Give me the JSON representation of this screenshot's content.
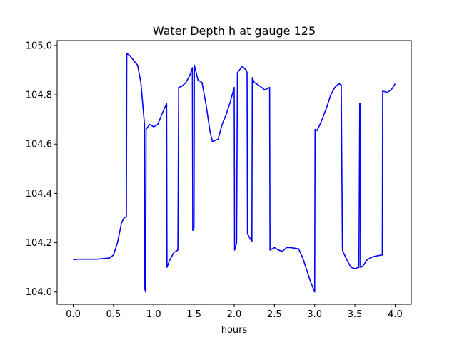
{
  "chart_data": {
    "type": "line",
    "title": "Water Depth h at gauge 125",
    "xlabel": "hours",
    "ylabel": "",
    "xlim": [
      -0.2,
      4.2
    ],
    "ylim": [
      103.95,
      105.02
    ],
    "xticks": [
      0.0,
      0.5,
      1.0,
      1.5,
      2.0,
      2.5,
      3.0,
      3.5,
      4.0
    ],
    "xtick_labels": [
      "0.0",
      "0.5",
      "1.0",
      "1.5",
      "2.0",
      "2.5",
      "3.0",
      "3.5",
      "4.0"
    ],
    "yticks": [
      104.0,
      104.2,
      104.4,
      104.6,
      104.8,
      105.0
    ],
    "ytick_labels": [
      "104.0",
      "104.2",
      "104.4",
      "104.6",
      "104.8",
      "105.0"
    ],
    "grid": false,
    "line_color": "#0000ff",
    "series": [
      {
        "x": [
          0.0,
          0.05,
          0.3,
          0.45,
          0.5,
          0.55,
          0.6,
          0.63,
          0.66,
          0.665,
          0.7,
          0.75,
          0.8,
          0.84,
          0.88,
          0.885,
          0.89,
          0.9,
          0.905,
          0.95,
          1.0,
          1.05,
          1.1,
          1.16,
          1.165,
          1.2,
          1.25,
          1.3,
          1.31,
          1.35,
          1.4,
          1.45,
          1.48,
          1.485,
          1.5,
          1.505,
          1.55,
          1.6,
          1.65,
          1.7,
          1.73,
          1.8,
          1.85,
          1.9,
          1.95,
          2.0,
          2.005,
          2.03,
          2.04,
          2.1,
          2.15,
          2.16,
          2.165,
          2.22,
          2.225,
          2.25,
          2.3,
          2.38,
          2.44,
          2.445,
          2.5,
          2.55,
          2.6,
          2.65,
          2.7,
          2.8,
          2.85,
          2.9,
          2.95,
          3.0,
          3.005,
          3.03,
          3.08,
          3.15,
          3.2,
          3.25,
          3.3,
          3.33,
          3.345,
          3.35,
          3.4,
          3.45,
          3.5,
          3.55,
          3.56,
          3.565,
          3.57,
          3.575,
          3.6,
          3.65,
          3.7,
          3.75,
          3.8,
          3.84,
          3.845,
          3.9,
          3.95,
          4.0
        ],
        "y": [
          104.13,
          104.133,
          104.133,
          104.138,
          104.15,
          104.2,
          104.28,
          104.3,
          104.305,
          104.968,
          104.96,
          104.94,
          104.92,
          104.85,
          104.7,
          104.68,
          104.01,
          104.0,
          104.66,
          104.68,
          104.67,
          104.68,
          104.72,
          104.765,
          104.1,
          104.13,
          104.16,
          104.17,
          104.83,
          104.835,
          104.85,
          104.88,
          104.91,
          104.25,
          104.26,
          104.92,
          104.86,
          104.85,
          104.76,
          104.65,
          104.61,
          104.62,
          104.68,
          104.72,
          104.77,
          104.83,
          104.17,
          104.2,
          104.89,
          104.915,
          104.9,
          104.89,
          104.235,
          104.205,
          104.87,
          104.85,
          104.84,
          104.82,
          104.83,
          104.17,
          104.18,
          104.17,
          104.165,
          104.18,
          104.18,
          104.175,
          104.14,
          104.09,
          104.04,
          104.0,
          104.66,
          104.655,
          104.69,
          104.75,
          104.8,
          104.83,
          104.845,
          104.84,
          104.17,
          104.165,
          104.13,
          104.1,
          104.095,
          104.1,
          104.765,
          104.765,
          104.1,
          104.1,
          104.105,
          104.13,
          104.14,
          104.145,
          104.148,
          104.15,
          104.815,
          104.81,
          104.82,
          104.845
        ]
      }
    ]
  }
}
